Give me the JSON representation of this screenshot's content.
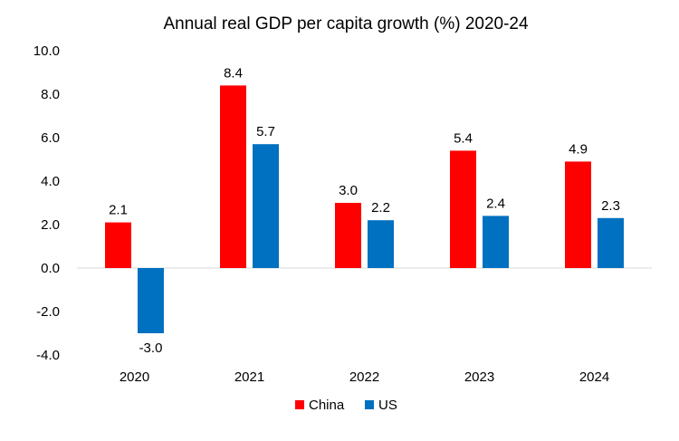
{
  "chart_data": {
    "type": "bar",
    "title": "Annual real GDP per capita growth (%) 2020-24",
    "categories": [
      "2020",
      "2021",
      "2022",
      "2023",
      "2024"
    ],
    "series": [
      {
        "name": "China",
        "values": [
          2.1,
          8.4,
          3.0,
          5.4,
          4.9
        ],
        "color": "#ff0000"
      },
      {
        "name": "US",
        "values": [
          -3.0,
          5.7,
          2.2,
          2.4,
          2.3
        ],
        "color": "#0070c0"
      }
    ],
    "ylim": [
      -4.0,
      10.0
    ],
    "yticks": [
      "-4.0",
      "-2.0",
      "0.0",
      "2.0",
      "4.0",
      "6.0",
      "8.0",
      "10.0"
    ],
    "grid": false,
    "legend": "bottom-center"
  }
}
